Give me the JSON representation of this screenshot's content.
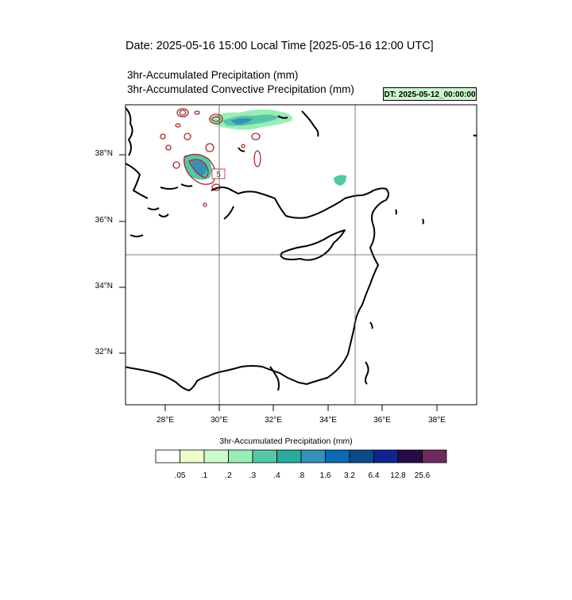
{
  "header": {
    "date_title": "Date: 2025-05-16  15:00 Local Time [2025-05-16  12:00 UTC]",
    "title_line1": "3hr-Accumulated Precipitation   (mm)",
    "title_line2": "3hr-Accumulated Convective Precipitation   (mm)",
    "dt_label": "DT: 2025-05-12_00:00:00"
  },
  "map": {
    "lat_labels": [
      "38°N",
      "36°N",
      "34°N",
      "32°N"
    ],
    "lon_labels": [
      "28°E",
      "30°E",
      "32°E",
      "34°E",
      "36°E",
      "38°E"
    ],
    "gridlines": {
      "lon": [
        30,
        35
      ],
      "lat": [
        35
      ]
    },
    "extent": {
      "lon_min": 26.5,
      "lon_max": 39.5,
      "lat_min": 30.4,
      "lat_max": 39.4
    },
    "convective_contour_label": "5",
    "convective_contour_color": "#a52a2a"
  },
  "colorbar": {
    "title": "3hr-Accumulated Precipitation  (mm)",
    "colors": [
      "#ffffff",
      "#eefcc8",
      "#ccfccc",
      "#99eeb4",
      "#55c7a7",
      "#2aa99e",
      "#3690b8",
      "#0a6aaf",
      "#0c4a8a",
      "#10248f",
      "#2a0a48",
      "#6e2a5e"
    ],
    "labels": [
      ".05",
      ".1",
      ".2",
      ".3",
      ".4",
      ".8",
      "1.6",
      "3.2",
      "6.4",
      "12.8",
      "25.6"
    ]
  }
}
